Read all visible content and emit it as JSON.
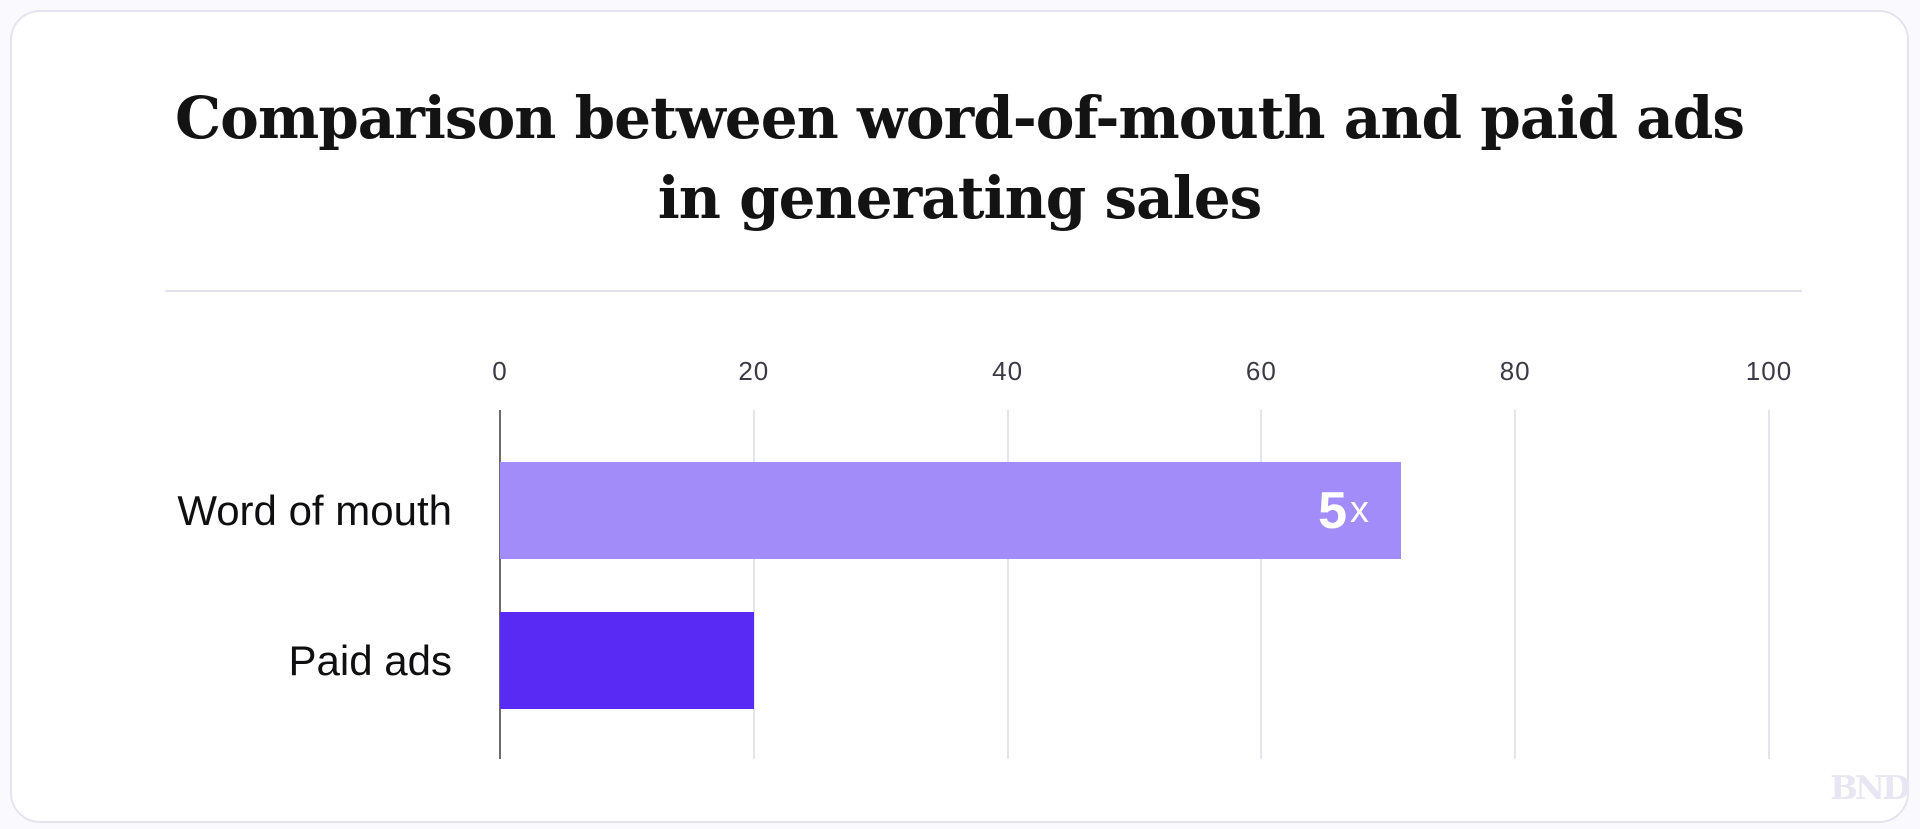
{
  "title": {
    "line1": "Comparison between word-of-mouth and paid ads",
    "line2": "in generating sales"
  },
  "watermark": {
    "text": "BND"
  },
  "colors": {
    "bar_word_of_mouth": "#a18cfa",
    "bar_paid_ads": "#5a2af5",
    "axis_line": "#6b6b74",
    "gridline": "#e4e4f0",
    "title_text": "#131313",
    "tick_text": "#3b3b45",
    "bar_label_text": "#ffffff",
    "card_border": "#e4e4f0",
    "watermark_text": "#e7e6f2"
  },
  "chart_data": {
    "type": "bar",
    "orientation": "horizontal",
    "title": "Comparison between word-of-mouth and paid ads in generating sales",
    "categories": [
      "Word of mouth",
      "Paid ads"
    ],
    "values": [
      71,
      20
    ],
    "bars": [
      {
        "category": "Word of mouth",
        "value": 71,
        "color": "#a18cfa",
        "label_main": "5",
        "label_suffix": "x"
      },
      {
        "category": "Paid ads",
        "value": 20,
        "color": "#5a2af5",
        "label_main": "",
        "label_suffix": ""
      }
    ],
    "xlim": [
      0,
      100
    ],
    "x_ticks": [
      "0",
      "20",
      "40",
      "60",
      "80",
      "100"
    ],
    "grid": "vertical",
    "legend_position": "none"
  }
}
